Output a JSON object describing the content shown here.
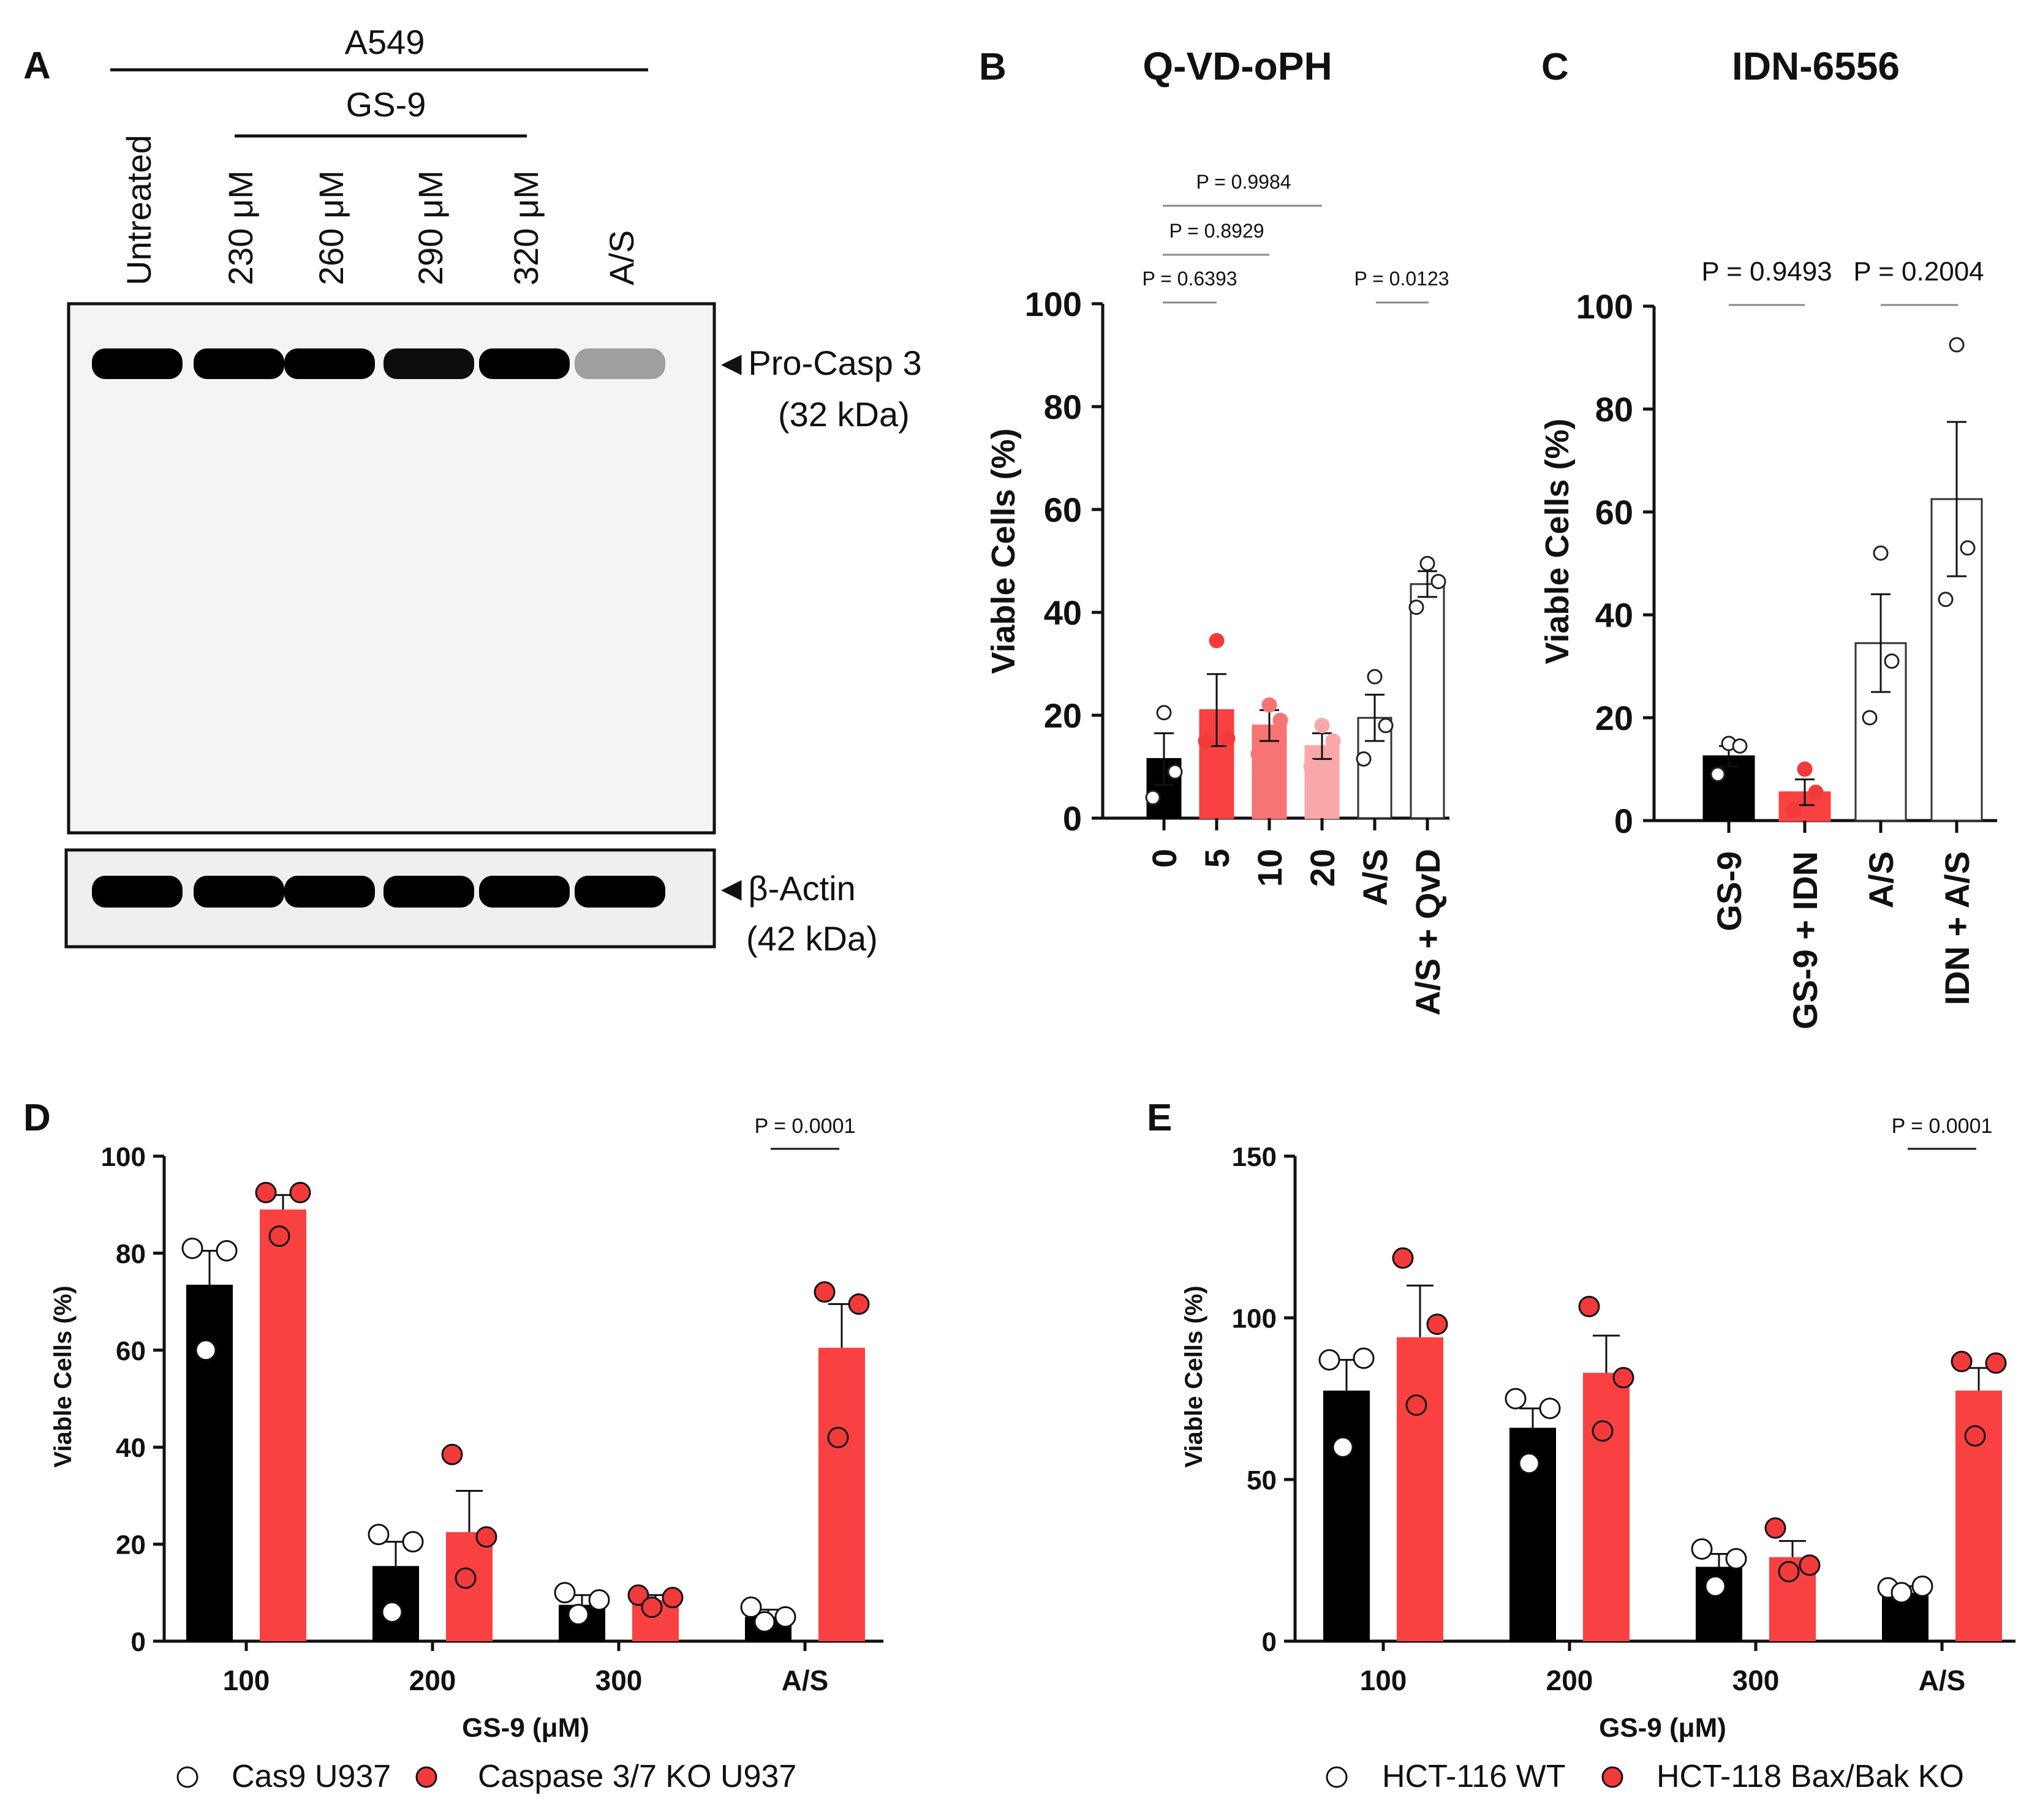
{
  "chart_data": [
    {
      "id": "A",
      "type": "western-blot",
      "panel_letter": "A",
      "cell_line": "A549",
      "treatment_group": "GS-9",
      "lanes": [
        "Untreated",
        "230 μM",
        "260 μM",
        "290 μM",
        "320 μM",
        "A/S"
      ],
      "bands": [
        {
          "label_line1": "◄Pro-Casp 3",
          "label_line2": "(32 kDa)",
          "lane_intensity": [
            1,
            1,
            1,
            0.95,
            1,
            0.35
          ]
        },
        {
          "label_line1": "◄β-Actin",
          "label_line2": "(42 kDa)",
          "lane_intensity": [
            1,
            1,
            1,
            1,
            1,
            1
          ]
        }
      ]
    },
    {
      "id": "B",
      "type": "bar",
      "panel_letter": "B",
      "title": "Q-VD-oPH",
      "ylabel": "Viable Cells (%)",
      "ylim": [
        0,
        100
      ],
      "yticks": [
        "0",
        "20",
        "40",
        "60",
        "80",
        "100"
      ],
      "categories": [
        "0",
        "5",
        "10",
        "20",
        "A/S",
        "A/S + QvD"
      ],
      "values": [
        11.5,
        21,
        18,
        14,
        19.5,
        45.5
      ],
      "errors": [
        5,
        7,
        3,
        2.5,
        4.5,
        2.5
      ],
      "points": [
        [
          20.5,
          9,
          4
        ],
        [
          34.5,
          15.5,
          15
        ],
        [
          22,
          19,
          12.5
        ],
        [
          18,
          15,
          10
        ],
        [
          27.5,
          18,
          11.5
        ],
        [
          49.5,
          46,
          41
        ]
      ],
      "colors": [
        "#000000",
        "#f94141",
        "#f77474",
        "#f8a8a8",
        "#ffffff",
        "#ffffff"
      ],
      "point_fill": [
        "#ffffff",
        "#f23a3a",
        "#f77474",
        "#f8a8a8",
        "#ffffff",
        "#ffffff"
      ],
      "comparisons": [
        {
          "label": "P = 0.6393",
          "from": 0,
          "to": 2,
          "kind": "short"
        },
        {
          "label": "P = 0.8929",
          "from": 0,
          "to": 2,
          "kind": "full"
        },
        {
          "label": "P = 0.9984",
          "from": 0,
          "to": 3,
          "kind": "full"
        },
        {
          "label": "P = 0.0123",
          "from": 4,
          "to": 5,
          "kind": "short"
        }
      ]
    },
    {
      "id": "C",
      "type": "bar",
      "panel_letter": "C",
      "title": "IDN-6556",
      "ylabel": "Viable Cells (%)",
      "ylim": [
        0,
        100
      ],
      "yticks": [
        "0",
        "20",
        "40",
        "60",
        "80",
        "100"
      ],
      "categories": [
        "GS-9",
        "GS-9 + IDN",
        "A/S",
        "IDN + A/S"
      ],
      "values": [
        12.5,
        5.5,
        34.5,
        62.5
      ],
      "errors": [
        2,
        2.5,
        9.5,
        15
      ],
      "points": [
        [
          15,
          14.5,
          9
        ],
        [
          10,
          5.5,
          2
        ],
        [
          52,
          31,
          20
        ],
        [
          92.5,
          53,
          43
        ]
      ],
      "colors": [
        "#000000",
        "#f94141",
        "#ffffff",
        "#ffffff"
      ],
      "point_fill": [
        "#ffffff",
        "#f23a3a",
        "#ffffff",
        "#ffffff"
      ],
      "comparisons": [
        {
          "label": "P = 0.9493",
          "from": 0,
          "to": 1,
          "kind": "short"
        },
        {
          "label": "P = 0.2004",
          "from": 2,
          "to": 3,
          "kind": "short"
        }
      ]
    },
    {
      "id": "D",
      "type": "grouped-bar",
      "panel_letter": "D",
      "xlabel": "GS-9 (μM)",
      "ylabel": "Viable Cells (%)",
      "ylim": [
        0,
        100
      ],
      "yticks": [
        "0",
        "20",
        "40",
        "60",
        "80",
        "100"
      ],
      "categories": [
        "100",
        "200",
        "300",
        "A/S"
      ],
      "series": [
        {
          "name": "Cas9 U937",
          "color": "#000000",
          "values": [
            73.5,
            15.5,
            7.5,
            5
          ],
          "errors": [
            7,
            5,
            2,
            1.5
          ],
          "points": [
            [
              81,
              80.5,
              60
            ],
            [
              22,
              20.5,
              6
            ],
            [
              10,
              8.5,
              5.5
            ],
            [
              7,
              5,
              4
            ]
          ]
        },
        {
          "name": "Caspase 3/7 KO U937",
          "color": "#f94141",
          "values": [
            89,
            22.5,
            8.5,
            60.5
          ],
          "errors": [
            3,
            8.5,
            1,
            9
          ],
          "points": [
            [
              92.5,
              92.5,
              83.5
            ],
            [
              38.5,
              21.5,
              13
            ],
            [
              9.5,
              9,
              7
            ],
            [
              72,
              69.5,
              42
            ]
          ]
        }
      ],
      "comparisons": [
        {
          "label": "P = 0.0001",
          "category": 3
        }
      ]
    },
    {
      "id": "E",
      "type": "grouped-bar",
      "panel_letter": "E",
      "xlabel": "GS-9 (μM)",
      "ylabel": "Viable Cells (%)",
      "ylim": [
        0,
        150
      ],
      "yticks": [
        "0",
        "50",
        "100",
        "150"
      ],
      "categories": [
        "100",
        "200",
        "300",
        "A/S"
      ],
      "series": [
        {
          "name": "HCT-116 WT",
          "color": "#000000",
          "values": [
            77.5,
            66,
            23,
            15
          ],
          "errors": [
            9.5,
            6,
            4,
            2
          ],
          "points": [
            [
              87,
              87.5,
              60
            ],
            [
              75,
              72,
              55
            ],
            [
              28.5,
              25.5,
              17
            ],
            [
              16.5,
              17,
              15
            ]
          ]
        },
        {
          "name": "HCT-118 Bax/Bak KO",
          "color": "#f94141",
          "values": [
            94,
            83,
            26,
            77.5
          ],
          "errors": [
            16,
            11.5,
            5,
            7
          ],
          "points": [
            [
              118.5,
              98,
              73
            ],
            [
              103.5,
              81.5,
              65
            ],
            [
              35,
              23.5,
              21.5
            ],
            [
              86.5,
              86,
              63.5
            ]
          ]
        }
      ],
      "comparisons": [
        {
          "label": "P = 0.0001",
          "category": 3
        }
      ]
    }
  ]
}
